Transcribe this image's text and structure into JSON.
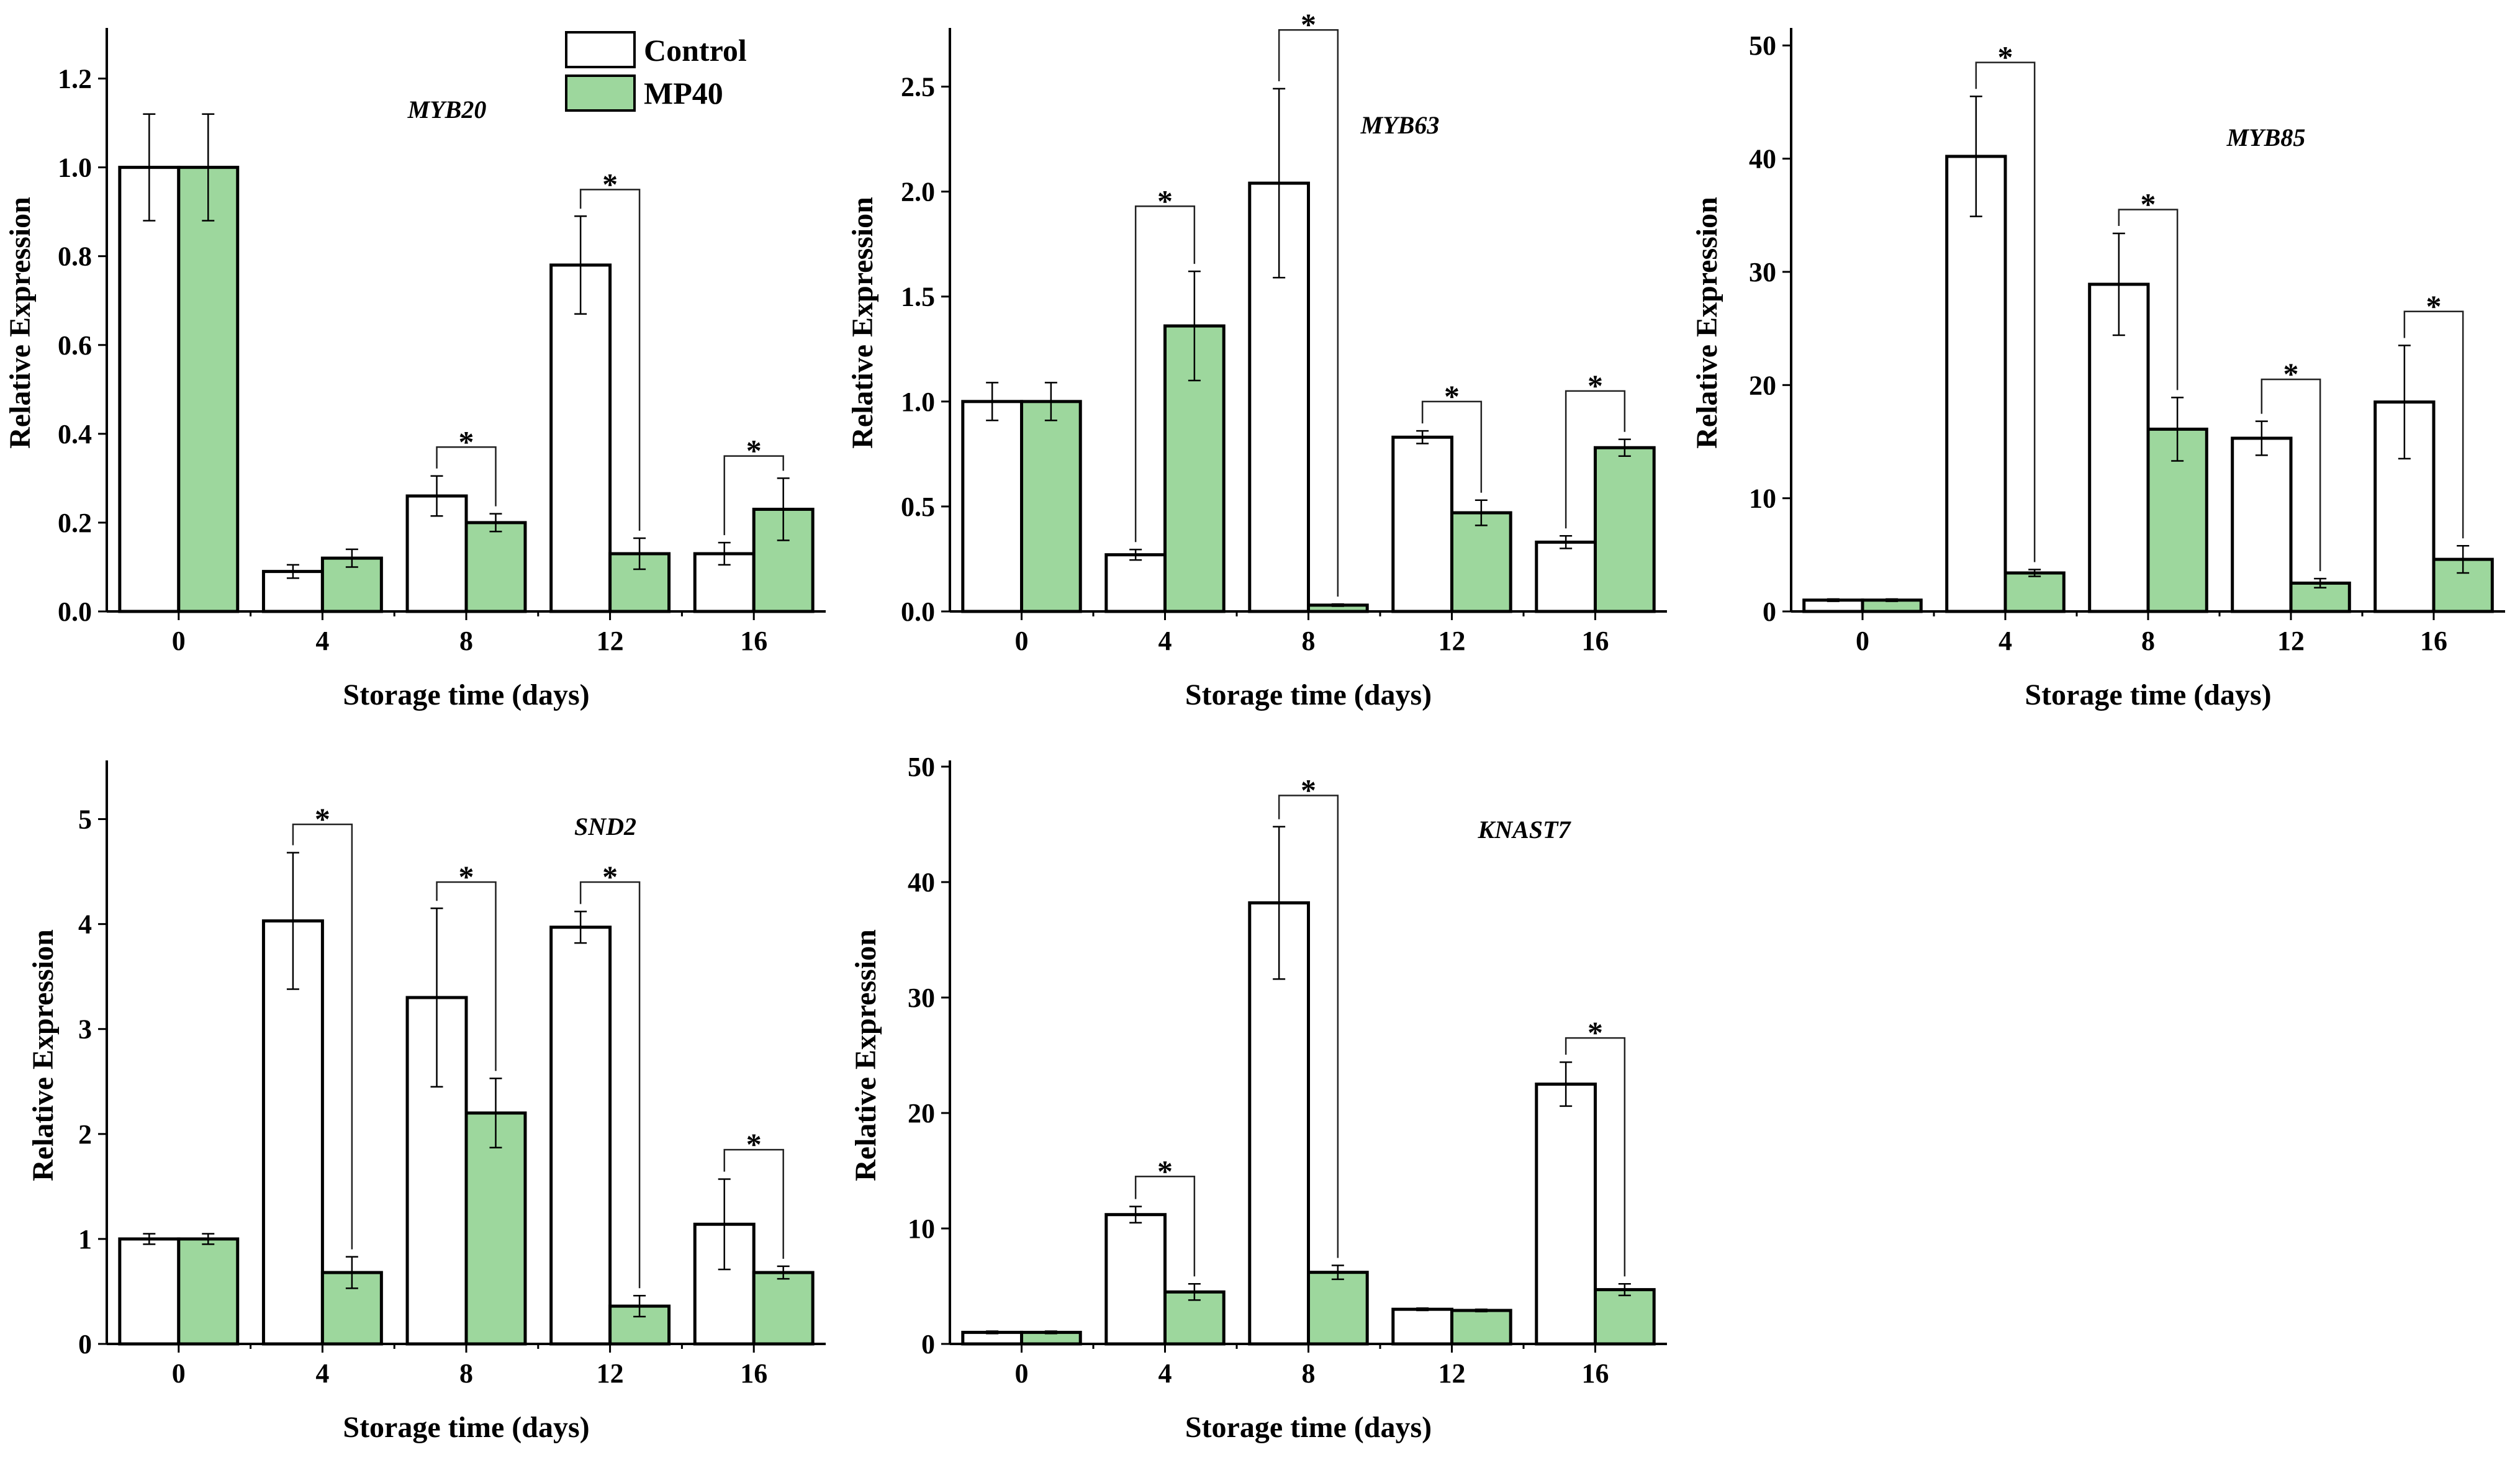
{
  "colors": {
    "control": "#ffffff",
    "treatment": "#9dd79d",
    "stroke": "#000000",
    "sig_line": "#222222"
  },
  "legend": {
    "control": "Control",
    "treatment": "MP40"
  },
  "chart_data": [
    {
      "type": "bar",
      "title": "MYB20",
      "xlabel": "Storage time (days)",
      "ylabel": "Relative Expression",
      "categories": [
        "0",
        "4",
        "8",
        "12",
        "16"
      ],
      "ylim": [
        0,
        1.3
      ],
      "yticks": [
        0.0,
        0.2,
        0.4,
        0.6,
        0.8,
        1.0,
        1.2
      ],
      "ytick_labels": [
        "0.0",
        "0.2",
        "0.4",
        "0.6",
        "0.8",
        "1.0",
        "1.2"
      ],
      "series": [
        {
          "name": "Control",
          "values": [
            1.0,
            0.09,
            0.26,
            0.78,
            0.13
          ],
          "errors": [
            0.12,
            0.015,
            0.045,
            0.11,
            0.025
          ]
        },
        {
          "name": "MP40",
          "values": [
            1.0,
            0.12,
            0.2,
            0.13,
            0.23
          ],
          "errors": [
            0.12,
            0.02,
            0.02,
            0.035,
            0.07
          ]
        }
      ],
      "significance": [
        {
          "index": 2,
          "mark": "*",
          "level": 0.37
        },
        {
          "index": 3,
          "mark": "*",
          "level": 0.95
        },
        {
          "index": 4,
          "mark": "*",
          "level": 0.35
        }
      ]
    },
    {
      "type": "bar",
      "title": "MYB63",
      "xlabel": "Storage time (days)",
      "ylabel": "Relative Expression",
      "categories": [
        "0",
        "4",
        "8",
        "12",
        "16"
      ],
      "ylim": [
        0,
        2.75
      ],
      "yticks": [
        0.0,
        0.5,
        1.0,
        1.5,
        2.0,
        2.5
      ],
      "ytick_labels": [
        "0.0",
        "0.5",
        "1.0",
        "1.5",
        "2.0",
        "2.5"
      ],
      "series": [
        {
          "name": "Control",
          "values": [
            1.0,
            0.27,
            2.04,
            0.83,
            0.33
          ],
          "errors": [
            0.09,
            0.025,
            0.45,
            0.03,
            0.03
          ]
        },
        {
          "name": "MP40",
          "values": [
            1.0,
            1.36,
            0.03,
            0.47,
            0.78
          ],
          "errors": [
            0.09,
            0.26,
            0.005,
            0.06,
            0.04
          ]
        }
      ],
      "significance": [
        {
          "index": 1,
          "mark": "*",
          "level": 1.93
        },
        {
          "index": 2,
          "mark": "*",
          "level": 2.77
        },
        {
          "index": 3,
          "mark": "*",
          "level": 1.0
        },
        {
          "index": 4,
          "mark": "*",
          "level": 1.05
        }
      ]
    },
    {
      "type": "bar",
      "title": "MYB85",
      "xlabel": "Storage time (days)",
      "ylabel": "Relative Expression",
      "categories": [
        "0",
        "4",
        "8",
        "12",
        "16"
      ],
      "ylim": [
        0,
        51
      ],
      "yticks": [
        0,
        10,
        20,
        30,
        40,
        50
      ],
      "ytick_labels": [
        "0",
        "10",
        "20",
        "30",
        "40",
        "50"
      ],
      "series": [
        {
          "name": "Control",
          "values": [
            1.0,
            40.2,
            28.9,
            15.3,
            18.5
          ],
          "errors": [
            0.1,
            5.3,
            4.5,
            1.5,
            5.0
          ]
        },
        {
          "name": "MP40",
          "values": [
            1.0,
            3.4,
            16.1,
            2.5,
            4.6
          ],
          "errors": [
            0.1,
            0.3,
            2.8,
            0.4,
            1.2
          ]
        }
      ],
      "significance": [
        {
          "index": 1,
          "mark": "*",
          "level": 48.5
        },
        {
          "index": 2,
          "mark": "*",
          "level": 35.5
        },
        {
          "index": 3,
          "mark": "*",
          "level": 20.5
        },
        {
          "index": 4,
          "mark": "*",
          "level": 26.5
        }
      ]
    },
    {
      "type": "bar",
      "title": "SND2",
      "xlabel": "Storage time (days)",
      "ylabel": "Relative Expression",
      "categories": [
        "0",
        "4",
        "8",
        "12",
        "16"
      ],
      "ylim": [
        0,
        5.5
      ],
      "yticks": [
        0,
        1,
        2,
        3,
        4,
        5
      ],
      "ytick_labels": [
        "0",
        "1",
        "2",
        "3",
        "4",
        "5"
      ],
      "series": [
        {
          "name": "Control",
          "values": [
            1.0,
            4.03,
            3.3,
            3.97,
            1.14
          ],
          "errors": [
            0.05,
            0.65,
            0.85,
            0.15,
            0.43
          ]
        },
        {
          "name": "MP40",
          "values": [
            1.0,
            0.68,
            2.2,
            0.36,
            0.68
          ],
          "errors": [
            0.05,
            0.15,
            0.33,
            0.1,
            0.06
          ]
        }
      ],
      "significance": [
        {
          "index": 1,
          "mark": "*",
          "level": 4.95
        },
        {
          "index": 2,
          "mark": "*",
          "level": 4.4
        },
        {
          "index": 3,
          "mark": "*",
          "level": 4.4
        },
        {
          "index": 4,
          "mark": "*",
          "level": 1.85
        }
      ]
    },
    {
      "type": "bar",
      "title": "KNAST7",
      "xlabel": "Storage time (days)",
      "ylabel": "Relative Expression",
      "categories": [
        "0",
        "4",
        "8",
        "12",
        "16"
      ],
      "ylim": [
        0,
        50
      ],
      "yticks": [
        0,
        10,
        20,
        30,
        40,
        50
      ],
      "ytick_labels": [
        "0",
        "10",
        "20",
        "30",
        "40",
        "50"
      ],
      "series": [
        {
          "name": "Control",
          "values": [
            1.0,
            11.2,
            38.2,
            3.0,
            22.5
          ],
          "errors": [
            0.1,
            0.7,
            6.6,
            0.1,
            1.9
          ]
        },
        {
          "name": "MP40",
          "values": [
            1.0,
            4.5,
            6.2,
            2.9,
            4.7
          ],
          "errors": [
            0.1,
            0.7,
            0.6,
            0.1,
            0.5
          ]
        }
      ],
      "significance": [
        {
          "index": 1,
          "mark": "*",
          "level": 14.5
        },
        {
          "index": 2,
          "mark": "*",
          "level": 47.5
        },
        {
          "index": 4,
          "mark": "*",
          "level": 26.5
        }
      ]
    }
  ]
}
